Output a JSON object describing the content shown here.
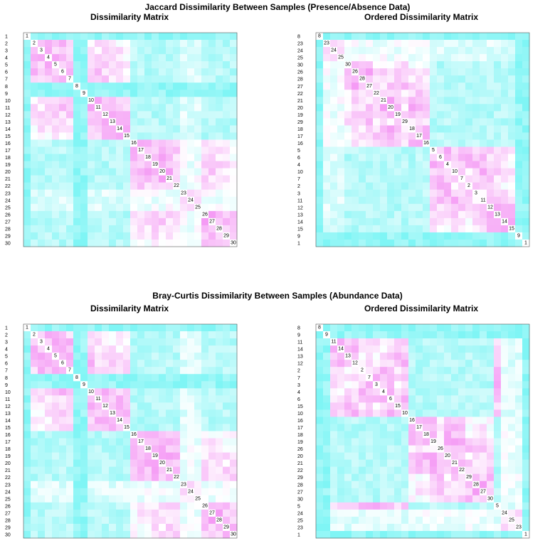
{
  "figure_titles": {
    "top": "Jaccard Dissimilarity Between Samples (Presence/Absence Data)",
    "bottom": "Bray-Curtis Dissimilarity Between Samples (Abundance Data)"
  },
  "colors": {
    "low": "#7ff5f5",
    "mid": "#ffffff",
    "high": "#f06af0",
    "diag": "#ffffff",
    "frame": "#000000"
  },
  "chart_data": [
    {
      "type": "heatmap",
      "group": "Jaccard Dissimilarity Between Samples (Presence/Absence Data)",
      "title": "Dissimilarity Matrix",
      "order": [
        1,
        2,
        3,
        4,
        5,
        6,
        7,
        8,
        9,
        10,
        11,
        12,
        13,
        14,
        15,
        16,
        17,
        18,
        19,
        20,
        21,
        22,
        23,
        24,
        25,
        26,
        27,
        28,
        29,
        30
      ],
      "value_scale": "high values cyan (dissimilar), low values magenta (similar)"
    },
    {
      "type": "heatmap",
      "group": "Jaccard Dissimilarity Between Samples (Presence/Absence Data)",
      "title": "Ordered Dissimilarity Matrix",
      "order": [
        8,
        23,
        24,
        25,
        30,
        26,
        28,
        27,
        22,
        21,
        20,
        19,
        29,
        18,
        17,
        16,
        5,
        6,
        4,
        10,
        7,
        2,
        3,
        11,
        12,
        13,
        14,
        15,
        9,
        1
      ],
      "value_scale": "high values cyan (dissimilar), low values magenta (similar)"
    },
    {
      "type": "heatmap",
      "group": "Bray-Curtis Dissimilarity Between Samples (Abundance Data)",
      "title": "Dissimilarity Matrix",
      "order": [
        1,
        2,
        3,
        4,
        5,
        6,
        7,
        8,
        9,
        10,
        11,
        12,
        13,
        14,
        15,
        16,
        17,
        18,
        19,
        20,
        21,
        22,
        23,
        24,
        25,
        26,
        27,
        28,
        29,
        30
      ],
      "value_scale": "high values cyan (dissimilar), low values magenta (similar)"
    },
    {
      "type": "heatmap",
      "group": "Bray-Curtis Dissimilarity Between Samples (Abundance Data)",
      "title": "Ordered Dissimilarity Matrix",
      "order": [
        8,
        9,
        11,
        14,
        13,
        12,
        2,
        7,
        3,
        4,
        6,
        15,
        10,
        16,
        17,
        18,
        19,
        26,
        20,
        21,
        22,
        29,
        28,
        27,
        30,
        5,
        24,
        25,
        23,
        1
      ],
      "value_scale": "high values cyan (dissimilar), low values magenta (similar)"
    }
  ]
}
